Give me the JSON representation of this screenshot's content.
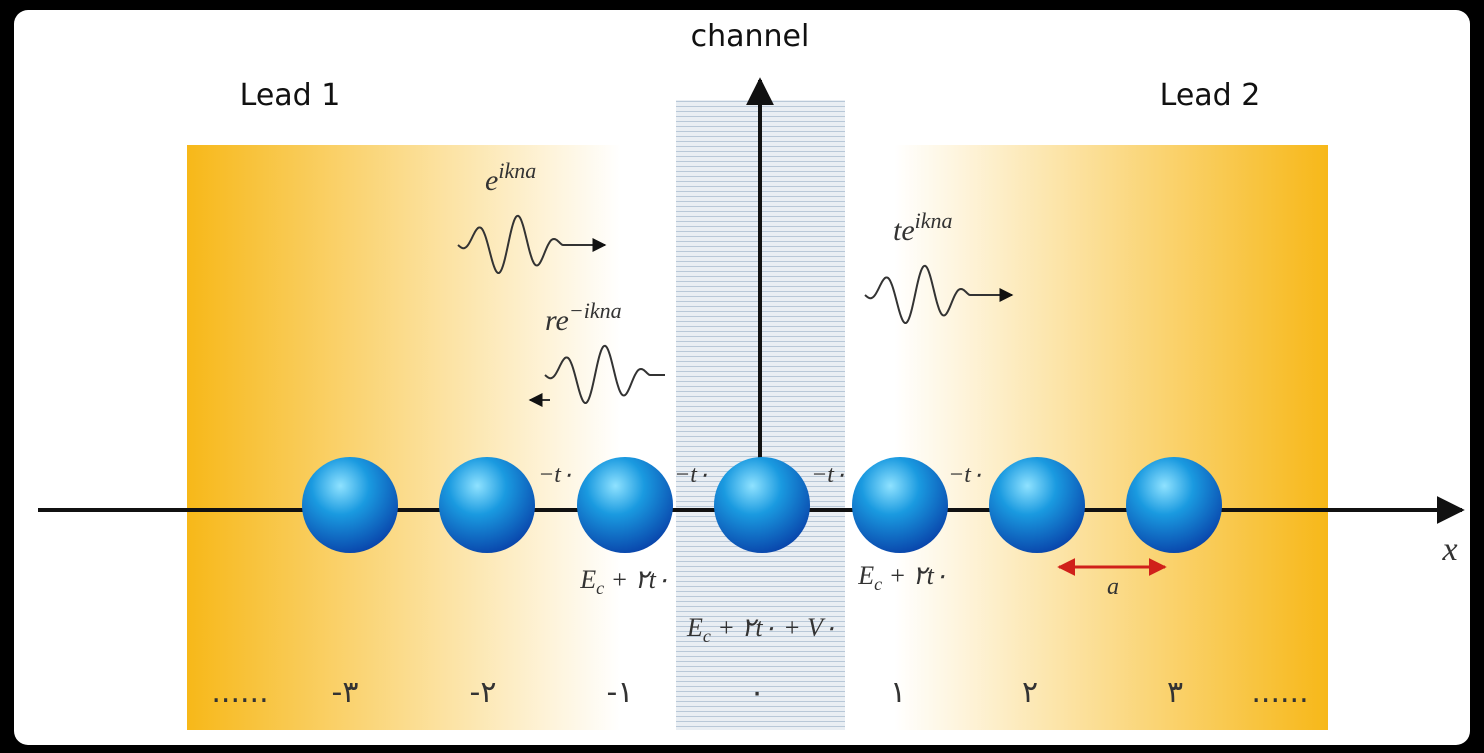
{
  "labels": {
    "channel": "channel",
    "lead_1": "Lead 1",
    "lead_2": "Lead 2",
    "axis_x": "x",
    "spacing": "a"
  },
  "waves": {
    "incident": {
      "text": "e",
      "sup": "ikna"
    },
    "reflected": {
      "text": "re",
      "sup": "−ikna"
    },
    "transmitted": {
      "text": "te",
      "sup": "ikna"
    }
  },
  "hoppings": [
    "−t۰",
    "−t۰",
    "−t۰",
    "−t۰"
  ],
  "onsite": {
    "left": {
      "base": "E",
      "sub": "c",
      "rest": " + ۲t۰"
    },
    "center": {
      "base": "E",
      "sub": "c",
      "rest": " + ۲t۰ + V۰"
    },
    "right": {
      "base": "E",
      "sub": "c",
      "rest": " + ۲t۰"
    }
  },
  "sites": [
    "......",
    "-۳",
    "-۲",
    "-۱",
    "۰",
    "۱",
    "۲",
    "۳",
    "......"
  ]
}
